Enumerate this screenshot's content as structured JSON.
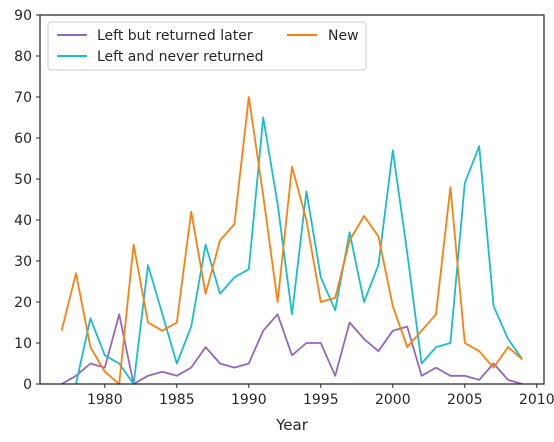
{
  "chart_data": {
    "type": "line",
    "title": "",
    "xlabel": "Year",
    "ylabel": "",
    "xlim": [
      1975.5,
      2010.5
    ],
    "ylim": [
      0,
      90
    ],
    "x_ticks": [
      1980,
      1985,
      1990,
      1995,
      2000,
      2005,
      2010
    ],
    "y_ticks": [
      0,
      10,
      20,
      30,
      40,
      50,
      60,
      70,
      80,
      90
    ],
    "grid": false,
    "legend_position": "top-left",
    "legend_columns": 2,
    "x": [
      1977,
      1978,
      1979,
      1980,
      1981,
      1982,
      1983,
      1984,
      1985,
      1986,
      1987,
      1988,
      1989,
      1990,
      1991,
      1992,
      1993,
      1994,
      1995,
      1996,
      1997,
      1998,
      1999,
      2000,
      2001,
      2002,
      2003,
      2004,
      2005,
      2006,
      2007,
      2008,
      2009
    ],
    "series": [
      {
        "name": "Left but returned later",
        "color": "#9467bd",
        "values": [
          0,
          2,
          5,
          4,
          17,
          0,
          2,
          3,
          2,
          4,
          9,
          5,
          4,
          5,
          13,
          17,
          7,
          10,
          10,
          2,
          15,
          11,
          8,
          13,
          14,
          2,
          4,
          2,
          2,
          1,
          5,
          1,
          0
        ]
      },
      {
        "name": "Left and never returned",
        "color": "#17becf",
        "values": [
          null,
          0,
          16,
          7,
          5,
          0,
          29,
          17,
          5,
          14,
          34,
          22,
          26,
          28,
          65,
          44,
          17,
          47,
          26,
          18,
          37,
          20,
          29,
          57,
          32,
          5,
          9,
          10,
          49,
          58,
          19,
          11,
          6
        ]
      },
      {
        "name": "New",
        "color": "#ff7f0e",
        "values": [
          13,
          27,
          9,
          3,
          0,
          34,
          15,
          13,
          15,
          42,
          22,
          35,
          39,
          70,
          46,
          20,
          53,
          40,
          20,
          21,
          35,
          41,
          36,
          19,
          9,
          13,
          17,
          48,
          10,
          8,
          4,
          9,
          6
        ]
      }
    ]
  }
}
